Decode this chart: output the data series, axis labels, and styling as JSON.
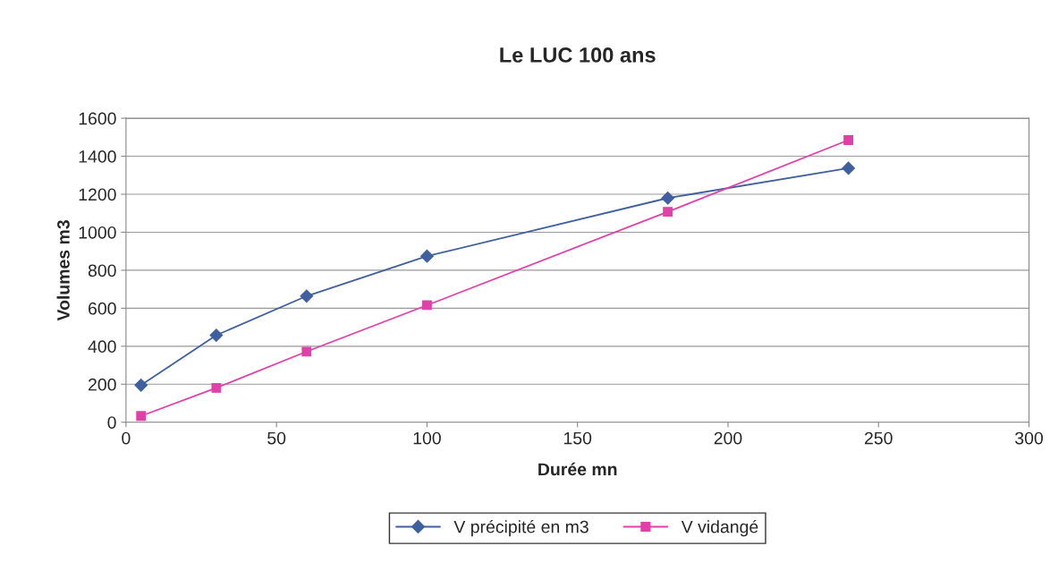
{
  "chart_data": {
    "type": "line",
    "title": "Le LUC 100 ans",
    "xlabel": "Durée mn",
    "ylabel": "Volumes m3",
    "xlim": [
      0,
      300
    ],
    "xticks": [
      0,
      50,
      100,
      150,
      200,
      250,
      300
    ],
    "ylim": [
      0,
      1600
    ],
    "yticks": [
      0,
      200,
      400,
      600,
      800,
      1000,
      1200,
      1400,
      1600
    ],
    "grid": "y",
    "legend": "bottom",
    "series": [
      {
        "name": "V précipité en m3",
        "color": "#3f5f9f",
        "marker": "diamond",
        "x": [
          5,
          30,
          60,
          100,
          180,
          240
        ],
        "values": [
          195,
          458,
          664,
          874,
          1180,
          1337
        ]
      },
      {
        "name": "V vidangé",
        "color": "#e040a8",
        "marker": "square",
        "x": [
          5,
          30,
          60,
          100,
          180,
          240
        ],
        "values": [
          33,
          181,
          372,
          616,
          1108,
          1485
        ]
      }
    ]
  }
}
